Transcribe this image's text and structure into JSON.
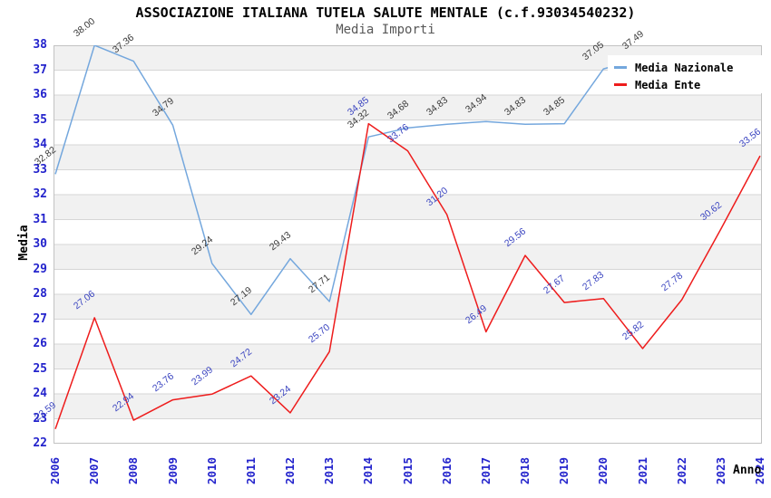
{
  "chart_data": {
    "type": "line",
    "title": "ASSOCIAZIONE ITALIANA TUTELA SALUTE MENTALE (c.f.93034540232)",
    "subtitle": "Media Importi",
    "xlabel": "Anno",
    "ylabel": "Media",
    "x": [
      2006,
      2007,
      2008,
      2009,
      2010,
      2011,
      2012,
      2013,
      2014,
      2015,
      2016,
      2017,
      2018,
      2019,
      2020,
      2021,
      2022,
      2023,
      2024
    ],
    "ylim": [
      22,
      38
    ],
    "ytick_step": 1,
    "grid": "horizontal",
    "banded_background": true,
    "legend_position": "top-right",
    "series": [
      {
        "name": "Media Nazionale",
        "color": "#74a7dd",
        "label_color": "#3a3a3a",
        "values": [
          32.82,
          38.0,
          37.36,
          34.79,
          29.24,
          27.19,
          29.43,
          27.71,
          34.32,
          34.68,
          34.83,
          34.94,
          34.83,
          34.85,
          37.05,
          37.49,
          null,
          null,
          null
        ]
      },
      {
        "name": "Media Ente",
        "color": "#ee1c1c",
        "label_color": "#3b45c0",
        "values": [
          22.59,
          27.06,
          22.94,
          23.76,
          23.99,
          24.72,
          23.24,
          25.7,
          34.85,
          33.76,
          31.2,
          26.49,
          29.56,
          27.67,
          27.83,
          25.82,
          27.78,
          30.62,
          33.56
        ]
      }
    ],
    "style": {
      "tick_color": "#2323cc",
      "band_color": "#f1f1f1",
      "grid_color": "#d6d6d6",
      "border_color": "#c2c2c2"
    }
  }
}
